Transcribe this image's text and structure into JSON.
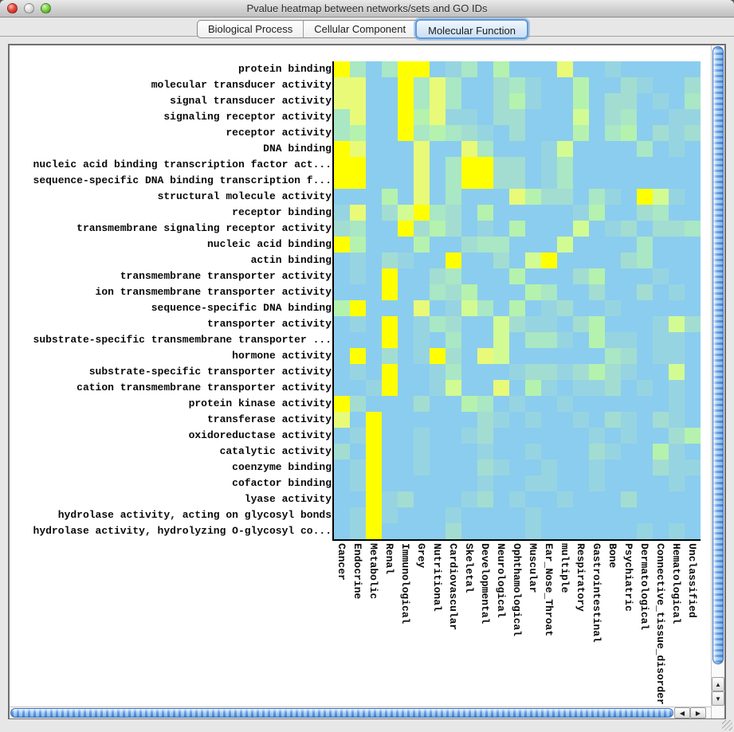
{
  "window": {
    "title": "Pvalue heatmap between networks/sets and GO IDs"
  },
  "tabs": {
    "items": [
      {
        "label": "Biological Process",
        "selected": false
      },
      {
        "label": "Cellular Component",
        "selected": false
      },
      {
        "label": "Molecular Function",
        "selected": true
      }
    ]
  },
  "scrollbars": {
    "up_glyph": "▲",
    "down_glyph": "▼",
    "left_glyph": "◀",
    "right_glyph": "▶"
  },
  "chart_data": {
    "type": "heatmap",
    "title": "Pvalue heatmap between networks/sets and GO IDs",
    "selected_ontology": "Molecular Function",
    "x_categories": [
      "Cancer",
      "Endocrine",
      "Metabolic",
      "Renal",
      "Immunological",
      "Grey",
      "Nutritional",
      "Cardiovascular",
      "Skeletal",
      "Developmental",
      "Neurological",
      "Ophthamological",
      "Muscular",
      "Ear_Nose_Throat",
      "multiple",
      "Respiratory",
      "Gastrointestinal",
      "Bone",
      "Psychiatric",
      "Dermatological",
      "Connective_tissue_disorder",
      "Hematological",
      "Unclassified"
    ],
    "y_categories": [
      "protein binding",
      "molecular transducer activity",
      "signal transducer activity",
      "signaling receptor activity",
      "receptor activity",
      "DNA binding",
      "nucleic acid binding transcription factor act...",
      "sequence-specific DNA binding transcription f...",
      "structural molecule activity",
      "receptor binding",
      "transmembrane signaling receptor activity",
      "nucleic acid binding",
      "actin binding",
      "transmembrane transporter activity",
      "ion transmembrane transporter activity",
      "sequence-specific DNA binding",
      "transporter activity",
      "substrate-specific transmembrane transporter ...",
      "hormone activity",
      "substrate-specific transporter activity",
      "cation transmembrane transporter activity",
      "protein kinase activity",
      "transferase activity",
      "oxidoreductase activity",
      "catalytic activity",
      "coenzyme binding",
      "cofactor binding",
      "lyase activity",
      "hydrolase activity, acting on glycosyl bonds",
      "hydrolase activity, hydrolyzing O-glycosyl co..."
    ],
    "palette": [
      "#8BCDEE",
      "#97D4E2",
      "#A3DDD2",
      "#A9E7C5",
      "#B5F2AE",
      "#D2FB93",
      "#E8FA78",
      "#FFFF00"
    ],
    "palette_meaning": "color-bin index read from cells: 0 = low significance (blue) through 7 = high significance (yellow)",
    "values": [
      [
        7,
        3,
        0,
        3,
        7,
        7,
        0,
        1,
        3,
        0,
        4,
        0,
        0,
        0,
        6,
        0,
        0,
        1,
        0,
        0,
        0,
        0,
        0
      ],
      [
        6,
        6,
        0,
        0,
        7,
        3,
        6,
        3,
        0,
        0,
        2,
        3,
        1,
        0,
        0,
        4,
        0,
        0,
        2,
        1,
        0,
        0,
        2
      ],
      [
        6,
        6,
        0,
        0,
        7,
        3,
        6,
        3,
        0,
        0,
        2,
        4,
        1,
        0,
        0,
        4,
        0,
        2,
        2,
        0,
        1,
        0,
        3
      ],
      [
        3,
        6,
        0,
        0,
        7,
        4,
        6,
        1,
        1,
        0,
        2,
        2,
        0,
        0,
        0,
        5,
        0,
        2,
        3,
        0,
        0,
        1,
        1
      ],
      [
        3,
        4,
        0,
        0,
        7,
        3,
        4,
        3,
        2,
        1,
        0,
        2,
        0,
        0,
        0,
        4,
        0,
        3,
        4,
        0,
        2,
        1,
        2
      ],
      [
        7,
        6,
        0,
        0,
        0,
        6,
        0,
        0,
        6,
        3,
        0,
        0,
        0,
        1,
        5,
        0,
        0,
        0,
        0,
        3,
        0,
        1,
        0
      ],
      [
        7,
        7,
        0,
        0,
        0,
        6,
        0,
        3,
        7,
        7,
        2,
        2,
        0,
        1,
        3,
        0,
        0,
        0,
        0,
        0,
        0,
        0,
        0
      ],
      [
        7,
        7,
        0,
        0,
        0,
        6,
        0,
        3,
        7,
        7,
        2,
        2,
        0,
        1,
        3,
        0,
        0,
        0,
        0,
        0,
        0,
        0,
        0
      ],
      [
        0,
        0,
        0,
        4,
        0,
        6,
        0,
        3,
        0,
        0,
        0,
        6,
        4,
        2,
        2,
        0,
        3,
        1,
        0,
        7,
        5,
        1,
        0
      ],
      [
        1,
        6,
        0,
        2,
        5,
        7,
        3,
        2,
        0,
        4,
        0,
        0,
        0,
        0,
        0,
        1,
        4,
        0,
        0,
        2,
        3,
        0,
        0
      ],
      [
        2,
        3,
        0,
        0,
        7,
        2,
        4,
        2,
        0,
        1,
        0,
        4,
        0,
        0,
        0,
        5,
        0,
        1,
        2,
        0,
        2,
        2,
        3
      ],
      [
        7,
        4,
        0,
        0,
        0,
        4,
        0,
        0,
        2,
        3,
        3,
        0,
        0,
        0,
        5,
        0,
        0,
        0,
        0,
        3,
        0,
        0,
        0
      ],
      [
        0,
        1,
        0,
        2,
        1,
        0,
        0,
        7,
        0,
        0,
        2,
        0,
        5,
        7,
        0,
        0,
        0,
        0,
        2,
        3,
        0,
        0,
        0
      ],
      [
        0,
        1,
        0,
        7,
        0,
        0,
        2,
        3,
        0,
        0,
        0,
        4,
        0,
        0,
        0,
        2,
        4,
        0,
        0,
        0,
        1,
        0,
        0
      ],
      [
        0,
        0,
        0,
        7,
        0,
        0,
        3,
        2,
        4,
        0,
        0,
        0,
        4,
        3,
        0,
        0,
        2,
        0,
        0,
        2,
        0,
        1,
        0
      ],
      [
        4,
        7,
        0,
        0,
        0,
        6,
        0,
        1,
        5,
        3,
        0,
        4,
        0,
        1,
        2,
        0,
        0,
        1,
        0,
        0,
        0,
        0,
        0
      ],
      [
        0,
        1,
        0,
        7,
        0,
        1,
        3,
        2,
        0,
        0,
        5,
        2,
        1,
        1,
        0,
        2,
        4,
        0,
        0,
        0,
        1,
        5,
        2
      ],
      [
        0,
        0,
        0,
        7,
        0,
        1,
        0,
        3,
        0,
        0,
        5,
        0,
        3,
        3,
        1,
        0,
        4,
        1,
        1,
        0,
        1,
        1,
        0
      ],
      [
        0,
        7,
        0,
        2,
        0,
        1,
        7,
        2,
        0,
        6,
        5,
        0,
        0,
        0,
        0,
        0,
        0,
        3,
        2,
        0,
        1,
        1,
        0
      ],
      [
        0,
        1,
        0,
        7,
        0,
        0,
        1,
        3,
        0,
        0,
        0,
        1,
        2,
        2,
        1,
        2,
        4,
        2,
        1,
        0,
        0,
        5,
        0
      ],
      [
        0,
        0,
        1,
        7,
        0,
        0,
        1,
        5,
        0,
        0,
        6,
        0,
        4,
        1,
        0,
        1,
        1,
        2,
        0,
        1,
        0,
        1,
        0
      ],
      [
        7,
        2,
        0,
        0,
        0,
        2,
        0,
        0,
        4,
        3,
        0,
        1,
        0,
        0,
        1,
        0,
        0,
        0,
        0,
        0,
        0,
        1,
        0
      ],
      [
        6,
        0,
        7,
        0,
        0,
        0,
        0,
        0,
        0,
        2,
        1,
        0,
        1,
        0,
        0,
        1,
        0,
        2,
        1,
        0,
        2,
        1,
        0
      ],
      [
        0,
        1,
        7,
        0,
        0,
        1,
        0,
        0,
        1,
        2,
        0,
        0,
        0,
        0,
        0,
        0,
        1,
        0,
        1,
        0,
        0,
        2,
        4
      ],
      [
        2,
        0,
        7,
        0,
        0,
        1,
        0,
        0,
        0,
        1,
        0,
        0,
        1,
        0,
        0,
        0,
        2,
        1,
        0,
        0,
        4,
        1,
        0
      ],
      [
        0,
        1,
        7,
        0,
        0,
        1,
        0,
        0,
        0,
        2,
        1,
        0,
        0,
        1,
        0,
        0,
        1,
        0,
        0,
        0,
        2,
        1,
        1
      ],
      [
        0,
        1,
        7,
        0,
        0,
        0,
        0,
        0,
        0,
        1,
        0,
        0,
        1,
        1,
        0,
        0,
        1,
        0,
        0,
        0,
        0,
        1,
        0
      ],
      [
        0,
        0,
        7,
        1,
        2,
        0,
        0,
        0,
        1,
        2,
        0,
        1,
        0,
        0,
        1,
        0,
        0,
        0,
        2,
        0,
        0,
        0,
        0
      ],
      [
        0,
        1,
        7,
        1,
        0,
        0,
        0,
        1,
        0,
        0,
        0,
        0,
        1,
        0,
        0,
        0,
        0,
        0,
        0,
        0,
        0,
        0,
        0
      ],
      [
        0,
        1,
        7,
        0,
        0,
        0,
        0,
        2,
        0,
        0,
        0,
        0,
        1,
        0,
        0,
        0,
        0,
        0,
        0,
        1,
        0,
        1,
        0
      ]
    ]
  }
}
